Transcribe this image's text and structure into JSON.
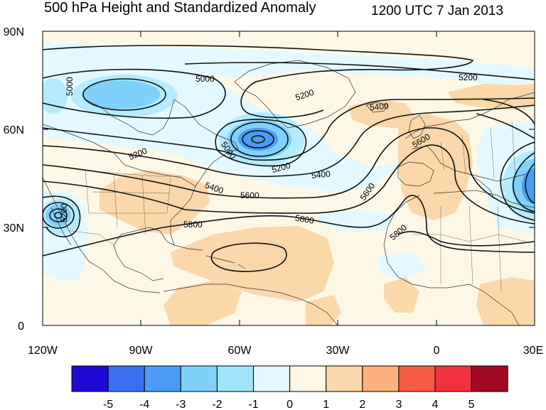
{
  "header": {
    "title": "500 hPa Height and Standardized Anomaly",
    "valid_time": "1200 UTC 7 Jan 2013"
  },
  "map": {
    "lat_labels": [
      "90N",
      "60N",
      "30N",
      "0"
    ],
    "lon_labels": [
      "120W",
      "90W",
      "60W",
      "30W",
      "0",
      "30E"
    ],
    "contour_labels": [
      {
        "text": "5000"
      },
      {
        "text": "5200"
      },
      {
        "text": "5200"
      },
      {
        "text": "5200"
      },
      {
        "text": "5400"
      },
      {
        "text": "5400"
      },
      {
        "text": "5400"
      },
      {
        "text": "5000"
      },
      {
        "text": "5200"
      },
      {
        "text": "5600"
      },
      {
        "text": "5600"
      },
      {
        "text": "5600"
      },
      {
        "text": "5800"
      },
      {
        "text": "5800"
      },
      {
        "text": "5800"
      },
      {
        "text": "5000"
      },
      {
        "text": "5200"
      },
      {
        "text": "5000"
      },
      {
        "text": "5400"
      }
    ],
    "anomaly_colors": {
      "neg2": "#b3ecff",
      "neg1": "#e3f9ff",
      "zero": "#fdf7e6",
      "pos1": "#fbd7a9",
      "pos2": "#fab27a"
    }
  },
  "colorbar": {
    "colors": [
      "#1f0ad3",
      "#3b6ff2",
      "#4c9cf5",
      "#7fd0fb",
      "#9ee5fc",
      "#e3f9ff",
      "#fdf7e6",
      "#fbd7a9",
      "#fab27a",
      "#f85b45",
      "#f2333f",
      "#a30a23"
    ],
    "tick_labels": [
      "-5",
      "-4",
      "-3",
      "-2",
      "-1",
      "0",
      "1",
      "2",
      "3",
      "4",
      "5"
    ]
  }
}
